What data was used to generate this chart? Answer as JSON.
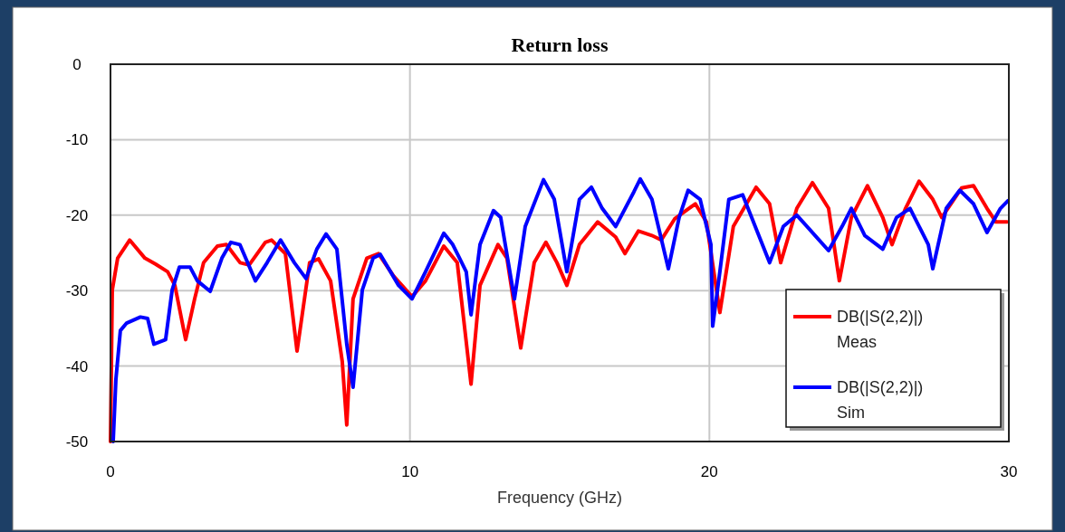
{
  "chart_data": {
    "type": "line",
    "title": "Return loss",
    "xlabel": "Frequency (GHz)",
    "xlim": [
      0,
      30
    ],
    "xticks": [
      0,
      10,
      20,
      30
    ],
    "ylim": [
      -50,
      0
    ],
    "yticks": [
      -50,
      -40,
      -30,
      -20,
      -10,
      0
    ],
    "grid": true,
    "legend": "bottom right",
    "marker": "none",
    "line_style": "solid",
    "series": [
      {
        "name": "DB(|S(2,2)|) Meas",
        "color": "#ff0000",
        "x": [
          0,
          0.06,
          0.24,
          0.64,
          1.15,
          1.51,
          1.91,
          2.15,
          2.51,
          2.81,
          3.11,
          3.57,
          3.87,
          4.33,
          4.63,
          5.17,
          5.38,
          5.84,
          6.23,
          6.65,
          6.95,
          7.35,
          7.74,
          7.89,
          8.1,
          8.56,
          8.95,
          9.46,
          10.07,
          10.52,
          11.13,
          11.58,
          12.04,
          12.34,
          12.94,
          13.24,
          13.7,
          14.15,
          14.54,
          14.91,
          15.24,
          15.66,
          16.27,
          16.87,
          17.18,
          17.63,
          18.08,
          18.39,
          18.84,
          19.53,
          19.9,
          20.35,
          20.8,
          21.56,
          22.01,
          22.38,
          22.92,
          23.44,
          23.98,
          24.34,
          24.74,
          25.28,
          25.79,
          26.1,
          26.55,
          27,
          27.46,
          27.76,
          28.42,
          28.82,
          29.27,
          29.57,
          29.94
        ],
        "values": [
          -50,
          -29.9,
          -25.7,
          -23.3,
          -25.7,
          -26.5,
          -27.5,
          -29.3,
          -36.5,
          -31.1,
          -26.3,
          -24.1,
          -23.9,
          -26.3,
          -26.6,
          -23.6,
          -23.3,
          -25.1,
          -38,
          -26.3,
          -25.8,
          -28.7,
          -39.4,
          -47.8,
          -31.1,
          -25.7,
          -25.1,
          -28.1,
          -30.8,
          -28.7,
          -24.1,
          -26.3,
          -42.4,
          -29.3,
          -23.9,
          -25.7,
          -37.6,
          -26.3,
          -23.6,
          -26.3,
          -29.3,
          -23.9,
          -20.9,
          -22.9,
          -25.1,
          -22.1,
          -22.7,
          -23.3,
          -20.5,
          -18.5,
          -20.9,
          -32.9,
          -21.5,
          -16.3,
          -18.5,
          -26.3,
          -19.1,
          -15.7,
          -19.1,
          -28.7,
          -20.3,
          -16.1,
          -20.3,
          -23.9,
          -19.1,
          -15.5,
          -17.9,
          -20.3,
          -16.4,
          -16.1,
          -19.1,
          -20.9,
          -20.9
        ]
      },
      {
        "name": "DB(|S(2,2)|) Sim",
        "color": "#0000ff",
        "x": [
          0.09,
          0.18,
          0.33,
          0.54,
          1,
          1.24,
          1.45,
          1.84,
          2.06,
          2.3,
          2.66,
          2.9,
          3.33,
          3.72,
          4.02,
          4.32,
          4.84,
          5.23,
          5.68,
          6.14,
          6.53,
          6.89,
          7.2,
          7.56,
          7.89,
          8.1,
          8.41,
          8.77,
          9.01,
          9.62,
          10.07,
          10.52,
          11.13,
          11.43,
          11.88,
          12.04,
          12.34,
          12.79,
          13.03,
          13.49,
          13.85,
          14.46,
          14.82,
          15.24,
          15.66,
          16.06,
          16.42,
          16.87,
          17.48,
          17.69,
          18.08,
          18.63,
          18.99,
          19.29,
          19.69,
          20.05,
          20.11,
          20.35,
          20.65,
          21.11,
          21.41,
          22.01,
          22.47,
          22.92,
          23.53,
          23.98,
          24.43,
          24.74,
          25.19,
          25.79,
          26.25,
          26.7,
          27.31,
          27.46,
          27.91,
          28.36,
          28.82,
          29.27,
          29.72,
          29.97
        ],
        "values": [
          -50,
          -41.8,
          -35.3,
          -34.3,
          -33.5,
          -33.7,
          -37.1,
          -36.5,
          -29.9,
          -26.9,
          -26.9,
          -28.7,
          -30.1,
          -25.7,
          -23.6,
          -23.9,
          -28.7,
          -26.3,
          -23.3,
          -26.3,
          -28.4,
          -24.5,
          -22.5,
          -24.5,
          -37.1,
          -42.8,
          -29.9,
          -25.7,
          -25.2,
          -29.3,
          -31.1,
          -27.5,
          -22.4,
          -23.9,
          -27.5,
          -33.2,
          -23.9,
          -19.4,
          -20.3,
          -31.1,
          -21.5,
          -15.3,
          -17.9,
          -27.5,
          -17.9,
          -16.3,
          -19.1,
          -21.5,
          -16.9,
          -15.2,
          -17.9,
          -27.1,
          -20.3,
          -16.7,
          -17.9,
          -23.9,
          -34.7,
          -27.5,
          -17.9,
          -17.3,
          -20.3,
          -26.3,
          -21.5,
          -20,
          -22.7,
          -24.7,
          -21.5,
          -19.1,
          -22.7,
          -24.5,
          -20.3,
          -19.1,
          -23.9,
          -27.1,
          -19.1,
          -16.7,
          -18.5,
          -22.3,
          -19.1,
          -18.1
        ]
      }
    ]
  }
}
